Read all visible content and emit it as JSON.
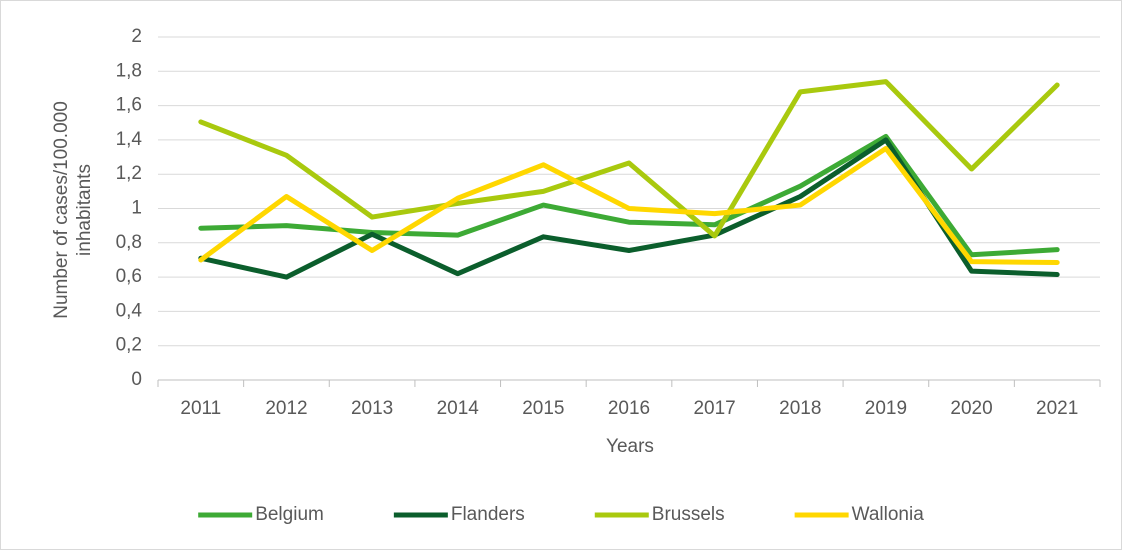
{
  "chart_data": {
    "type": "line",
    "x_label": "Years",
    "y_label": [
      "Number of cases/100.000",
      "inhabitants"
    ],
    "categories": [
      "2011",
      "2012",
      "2013",
      "2014",
      "2015",
      "2016",
      "2017",
      "2018",
      "2019",
      "2020",
      "2021"
    ],
    "series": [
      {
        "name": "Belgium",
        "color": "#3daa35",
        "values": [
          0.885,
          0.9,
          0.86,
          0.845,
          1.02,
          0.92,
          0.905,
          1.13,
          1.42,
          0.73,
          0.76
        ]
      },
      {
        "name": "Flanders",
        "color": "#0b5e2c",
        "values": [
          0.71,
          0.6,
          0.85,
          0.62,
          0.835,
          0.755,
          0.845,
          1.07,
          1.4,
          0.635,
          0.615
        ]
      },
      {
        "name": "Brussels",
        "color": "#a9c90e",
        "values": [
          1.505,
          1.31,
          0.95,
          1.03,
          1.1,
          1.265,
          0.84,
          1.68,
          1.74,
          1.23,
          1.72
        ]
      },
      {
        "name": "Wallonia",
        "color": "#ffd700",
        "values": [
          0.7,
          1.07,
          0.755,
          1.06,
          1.255,
          1.0,
          0.97,
          1.02,
          1.35,
          0.69,
          0.685
        ]
      }
    ],
    "ylim": [
      0,
      2
    ],
    "yticks": [
      0,
      {
        "value": 0.2,
        "label": "0,2"
      },
      {
        "value": 0.4,
        "label": "0,4"
      },
      {
        "value": 0.6,
        "label": "0,6"
      },
      {
        "value": 0.8,
        "label": "0,8"
      },
      1,
      {
        "value": 1.2,
        "label": "1,2"
      },
      {
        "value": 1.4,
        "label": "1,4"
      },
      {
        "value": 1.6,
        "label": "1,6"
      },
      {
        "value": 1.8,
        "label": "1,8"
      },
      2
    ],
    "grid": true,
    "legend": "bottom"
  }
}
